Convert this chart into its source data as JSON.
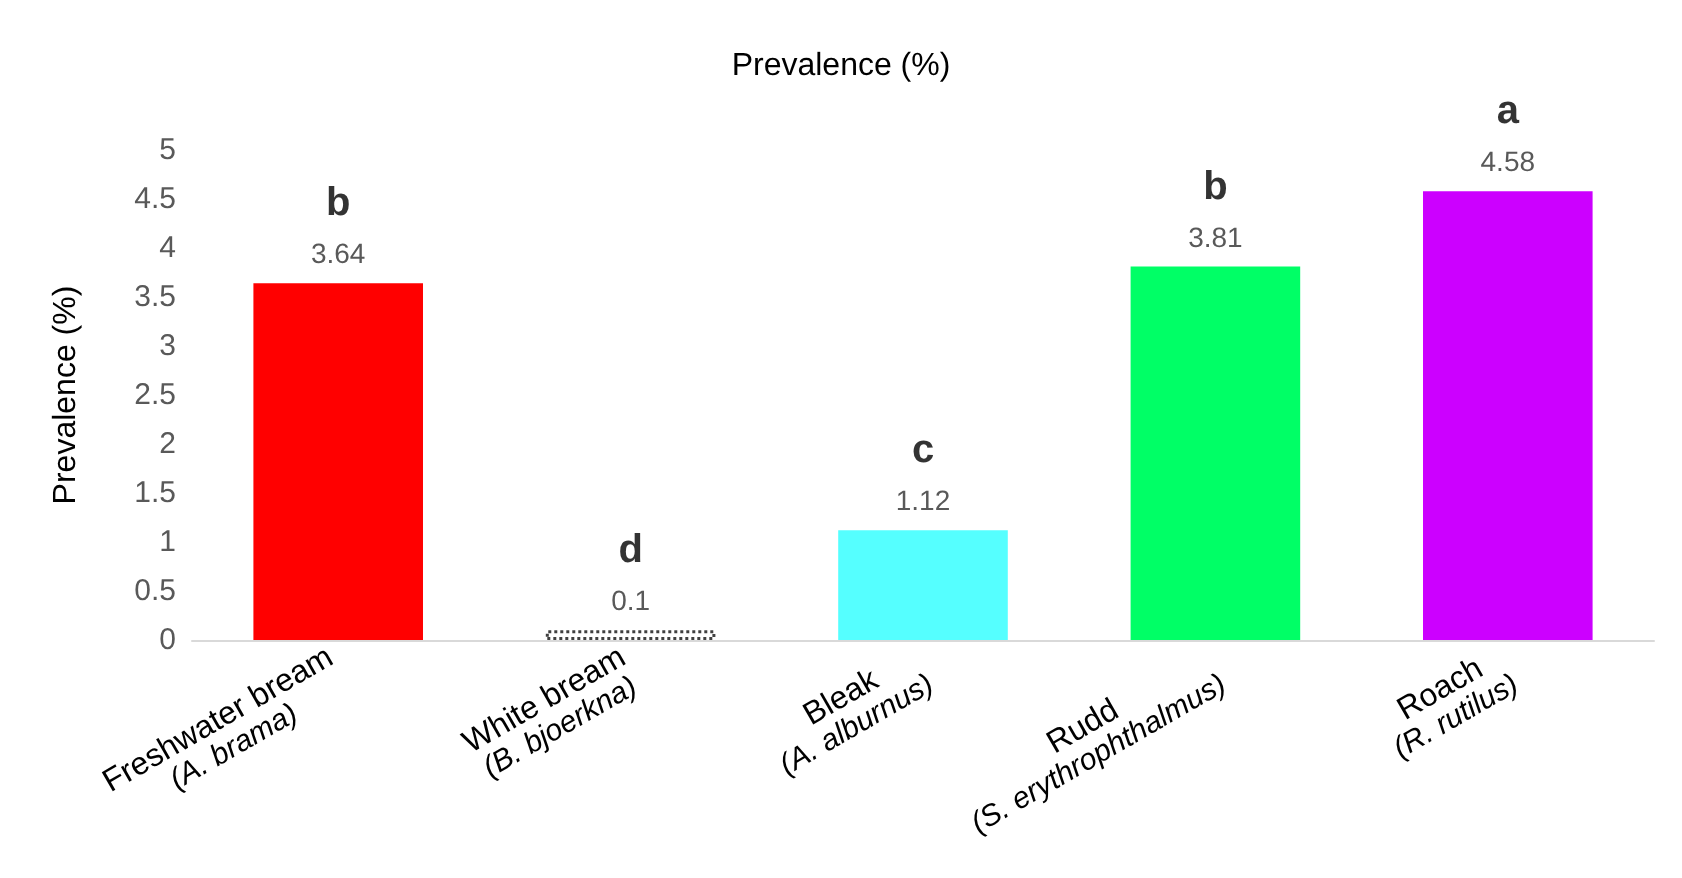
{
  "chart_data": {
    "type": "bar",
    "title": "Prevalence (%)",
    "ylabel": "Prevalence (%)",
    "categories": [
      "Freshwater bream\n(A. brama)",
      "White bream\n(B. bjoerkna)",
      "Bleak\n(A. alburnus)",
      "Rudd\n(S. erythrophthalmus)",
      "Roach\n(R. rutilus)"
    ],
    "values": [
      3.64,
      0.1,
      1.12,
      3.81,
      4.58
    ],
    "colors": [
      "#ff0000",
      "#ffffff",
      "#55ffff",
      "#00ff66",
      "#cc00ff"
    ],
    "data_labels": true,
    "annotations": [
      {
        "text": "b",
        "x": "Freshwater bream\n(A. brama)",
        "y": 3.64
      },
      {
        "text": "d",
        "x": "White bream\n(B. bjoerkna)",
        "y": 0.1
      },
      {
        "text": "c",
        "x": "Bleak\n(A. alburnus)",
        "y": 1.12
      },
      {
        "text": "b",
        "x": "Rudd\n(S. erythrophthalmus)",
        "y": 3.81
      },
      {
        "text": "a",
        "x": "Roach\n(R. rutilus)",
        "y": 4.58
      }
    ],
    "ylim": [
      0,
      5
    ],
    "yticks": [
      0,
      0.5,
      1,
      1.5,
      2,
      2.5,
      3,
      3.5,
      4,
      4.5,
      5
    ],
    "grid": false
  }
}
